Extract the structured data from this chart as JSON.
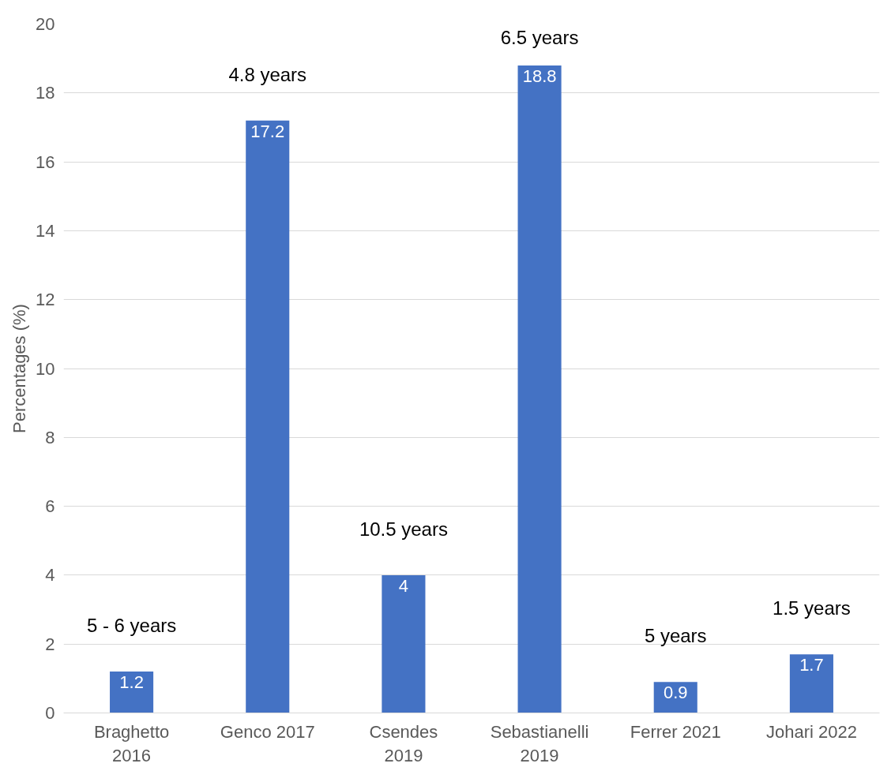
{
  "chart_data": {
    "type": "bar",
    "ylabel": "Percentages (%)",
    "categories": [
      "Braghetto 2016",
      "Genco 2017",
      "Csendes 2019",
      "Sebastianelli 2019",
      "Ferrer 2021",
      "Johari 2022"
    ],
    "values": [
      1.2,
      17.2,
      4,
      18.8,
      0.9,
      1.7
    ],
    "color": "#4472c4",
    "data_labels": true,
    "ylim": [
      0,
      20
    ],
    "yticks": [
      0,
      2,
      4,
      6,
      8,
      10,
      12,
      14,
      16,
      18,
      20
    ],
    "grid": "y",
    "annotations": [
      {
        "text": "5 - 6 years",
        "x": "Braghetto 2016",
        "y": 1.2
      },
      {
        "text": "4.8 years",
        "x": "Genco 2017",
        "y": 17.2
      },
      {
        "text": "10.5 years",
        "x": "Csendes 2019",
        "y": 4
      },
      {
        "text": "6.5 years",
        "x": "Sebastianelli 2019",
        "y": 18.8
      },
      {
        "text": "5 years",
        "x": "Ferrer 2021",
        "y": 0.9
      },
      {
        "text": "1.5 years",
        "x": "Johari 2022",
        "y": 1.7
      }
    ]
  }
}
